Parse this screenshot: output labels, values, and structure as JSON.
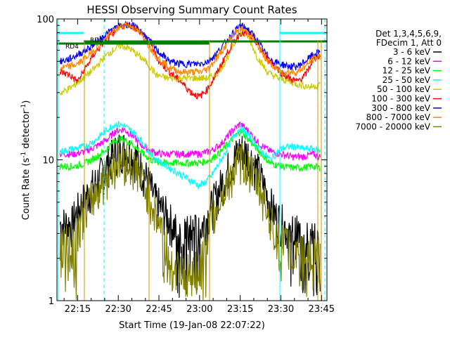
{
  "chart_data": {
    "type": "line",
    "title": "HESSI Observing Summary Count Rates",
    "xlabel": "Start Time (19-Jan-08 22:07:22)",
    "ylabel_main": "Count Rate (s",
    "ylabel_sup": "-1",
    "ylabel_end": " detector",
    "ylabel_sup2": "-1",
    "ylabel_close": ")",
    "x_unit": "minutes of day (UT)",
    "xlim": [
      1327.37,
      1427.0
    ],
    "y_scale": "log",
    "ylim": [
      1,
      100
    ],
    "x_ticks": [
      {
        "value": 1335,
        "label": "22:15"
      },
      {
        "value": 1350,
        "label": "22:30"
      },
      {
        "value": 1365,
        "label": "22:45"
      },
      {
        "value": 1380,
        "label": "23:00"
      },
      {
        "value": 1395,
        "label": "23:15"
      },
      {
        "value": 1410,
        "label": "23:30"
      },
      {
        "value": 1425,
        "label": "23:45"
      }
    ],
    "y_ticks": [
      {
        "value": 1,
        "label": "1"
      },
      {
        "value": 10,
        "label": "10"
      },
      {
        "value": 100,
        "label": "100"
      }
    ],
    "legend_header_1": "Det 1,3,4,5,6,9,",
    "legend_header_2": "FDecim 1, Att 0",
    "legend_position": "right",
    "attenuator_labels": [
      "RD4",
      "RD0"
    ],
    "series": [
      {
        "name": "3 - 6 keV",
        "color": "#000000",
        "x": [
          1329,
          1333,
          1334,
          1338,
          1343,
          1347,
          1350,
          1353,
          1357,
          1361,
          1364,
          1368,
          1372,
          1376,
          1380,
          1383,
          1387,
          1391,
          1395,
          1398,
          1402,
          1405,
          1408,
          1411,
          1414,
          1418,
          1421,
          1424
        ],
        "y": [
          3.5,
          3.5,
          4.0,
          5.5,
          7.5,
          10,
          12,
          12,
          10,
          7,
          5,
          4,
          3,
          3,
          3.2,
          4,
          6,
          9,
          12,
          11,
          8,
          5.5,
          4,
          3.5,
          3,
          3,
          2.8,
          2.5
        ]
      },
      {
        "name": "6 - 12 keV",
        "color": "#ff00ff",
        "x": [
          1329,
          1334,
          1338,
          1342,
          1346,
          1349,
          1352,
          1355,
          1358,
          1362,
          1366,
          1370,
          1375,
          1380,
          1384,
          1388,
          1392,
          1395,
          1398,
          1402,
          1406,
          1410,
          1414,
          1418,
          1422,
          1424
        ],
        "y": [
          11,
          11,
          11.5,
          12.5,
          14,
          16,
          16.5,
          15,
          13,
          11.5,
          11,
          11,
          11,
          11,
          11.5,
          13,
          16,
          18,
          16,
          13,
          11.5,
          11,
          10.5,
          10.5,
          11,
          10.5
        ]
      },
      {
        "name": "12 - 25 keV",
        "color": "#00ff00",
        "x": [
          1329,
          1334,
          1338,
          1342,
          1346,
          1349,
          1352,
          1355,
          1358,
          1362,
          1366,
          1370,
          1375,
          1380,
          1384,
          1388,
          1392,
          1395,
          1398,
          1402,
          1406,
          1410,
          1414,
          1418,
          1422,
          1424
        ],
        "y": [
          9,
          9,
          9.5,
          10.5,
          12,
          14,
          14,
          13,
          11.5,
          10,
          9.5,
          9.5,
          9.5,
          9.5,
          10,
          11.5,
          14,
          16,
          14,
          11.5,
          9.5,
          9,
          8.8,
          8.8,
          9,
          8.8
        ]
      },
      {
        "name": "25 - 50 keV",
        "color": "#00ffff",
        "x": [
          1329,
          1334,
          1338,
          1342,
          1346,
          1349,
          1352,
          1355,
          1358,
          1362,
          1366,
          1370,
          1375,
          1380,
          1384,
          1388,
          1392,
          1395,
          1398,
          1402,
          1406,
          1410,
          1414,
          1418,
          1422,
          1424
        ],
        "y": [
          11.5,
          12,
          12.5,
          14,
          16.5,
          18,
          17.5,
          16,
          14,
          11,
          9.5,
          8.5,
          7.5,
          6.5,
          7.5,
          10,
          14,
          17,
          15,
          12,
          10,
          12,
          12.5,
          12,
          12,
          11.5
        ]
      },
      {
        "name": "50 - 100 keV",
        "color": "#cccc00",
        "x": [
          1329,
          1333,
          1337,
          1341,
          1345,
          1348,
          1351,
          1354,
          1357,
          1361,
          1364,
          1368,
          1372,
          1376,
          1380,
          1383,
          1386,
          1389,
          1392,
          1395,
          1398,
          1401,
          1405,
          1409,
          1413,
          1417,
          1421,
          1424
        ],
        "y": [
          30,
          33,
          38,
          44,
          54,
          60,
          65,
          62,
          56,
          48,
          40,
          38,
          38,
          38,
          38,
          38,
          40,
          48,
          62,
          80,
          75,
          55,
          42,
          38,
          36,
          34,
          33,
          34
        ]
      },
      {
        "name": "100 - 300 keV",
        "color": "#ff0000",
        "x": [
          1329,
          1332,
          1335,
          1338,
          1341,
          1344,
          1347,
          1350,
          1353,
          1356,
          1359,
          1362,
          1365,
          1369,
          1373,
          1377,
          1380,
          1383,
          1386,
          1389,
          1392,
          1395,
          1398,
          1401,
          1404,
          1407,
          1410,
          1413,
          1416,
          1419,
          1422,
          1424
        ],
        "y": [
          42,
          40,
          36,
          45,
          56,
          66,
          76,
          86,
          92,
          88,
          78,
          66,
          50,
          42,
          36,
          30,
          28,
          32,
          40,
          52,
          66,
          80,
          78,
          68,
          55,
          48,
          42,
          38,
          36,
          40,
          52,
          55
        ]
      },
      {
        "name": "300 - 800 keV",
        "color": "#0000ff",
        "x": [
          1329,
          1332,
          1335,
          1338,
          1341,
          1344,
          1347,
          1350,
          1353,
          1356,
          1359,
          1362,
          1365,
          1369,
          1373,
          1377,
          1380,
          1383,
          1386,
          1389,
          1392,
          1395,
          1398,
          1401,
          1404,
          1407,
          1410,
          1413,
          1416,
          1419,
          1422,
          1424
        ],
        "y": [
          50,
          52,
          56,
          60,
          66,
          74,
          82,
          88,
          92,
          88,
          80,
          68,
          58,
          50,
          48,
          48,
          48,
          50,
          56,
          66,
          78,
          90,
          84,
          72,
          58,
          50,
          48,
          46,
          46,
          50,
          56,
          58
        ]
      },
      {
        "name": "800 - 7000 keV",
        "color": "#ff8800",
        "x": [
          1329,
          1332,
          1335,
          1338,
          1341,
          1344,
          1347,
          1350,
          1353,
          1356,
          1359,
          1362,
          1365,
          1369,
          1373,
          1377,
          1380,
          1383,
          1386,
          1389,
          1392,
          1395,
          1398,
          1401,
          1404,
          1407,
          1410,
          1413,
          1416,
          1419,
          1422,
          1424
        ],
        "y": [
          45,
          46,
          48,
          53,
          60,
          68,
          78,
          86,
          92,
          86,
          76,
          62,
          52,
          45,
          42,
          42,
          42,
          44,
          52,
          62,
          76,
          86,
          80,
          66,
          54,
          46,
          42,
          42,
          42,
          46,
          52,
          54
        ]
      },
      {
        "name": "7000 - 20000 keV",
        "color": "#808000",
        "x": [
          1329,
          1333,
          1334,
          1338,
          1343,
          1347,
          1350,
          1353,
          1357,
          1361,
          1364,
          1367,
          1370,
          1373,
          1376,
          1380,
          1383,
          1387,
          1391,
          1395,
          1398,
          1402,
          1405,
          1408,
          1411,
          1414,
          1418,
          1421,
          1424
        ],
        "y": [
          2.6,
          2.6,
          3.0,
          4.5,
          6.5,
          8.5,
          10,
          10,
          8.5,
          6,
          4,
          3,
          2,
          1.6,
          1.6,
          1.7,
          3,
          5,
          7.5,
          10,
          9,
          6.5,
          4.5,
          3,
          2.5,
          2.4,
          2.3,
          2.2,
          2
        ]
      }
    ]
  }
}
